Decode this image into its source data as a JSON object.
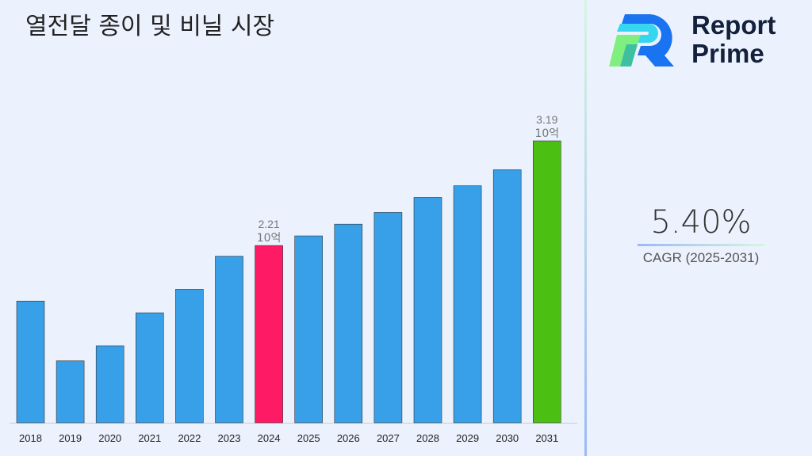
{
  "title": "열전달 종이 및 비닐 시장",
  "brand": {
    "line1": "Report",
    "line2": "Prime"
  },
  "cagr": {
    "value": "5.40%",
    "label": "CAGR (2025-2031)"
  },
  "chart_data": {
    "type": "bar",
    "title": "열전달 종이 및 비닐 시장",
    "categories": [
      "2018",
      "2019",
      "2020",
      "2021",
      "2022",
      "2023",
      "2024",
      "2025",
      "2026",
      "2027",
      "2028",
      "2029",
      "2030",
      "2031"
    ],
    "values": [
      1.69,
      1.13,
      1.27,
      1.58,
      1.8,
      2.11,
      2.21,
      2.3,
      2.41,
      2.52,
      2.66,
      2.77,
      2.92,
      3.19
    ],
    "unit": "10억",
    "data_labels": [
      {
        "category": "2024",
        "value": "2.21",
        "unit": "10억"
      },
      {
        "category": "2031",
        "value": "3.19",
        "unit": "10억"
      }
    ],
    "ylim": [
      0.55,
      3.19
    ],
    "grid": false,
    "colors": {
      "default": "#38a0e8",
      "highlight_2024": "#ff1a66",
      "highlight_2031": "#4cc012"
    }
  }
}
